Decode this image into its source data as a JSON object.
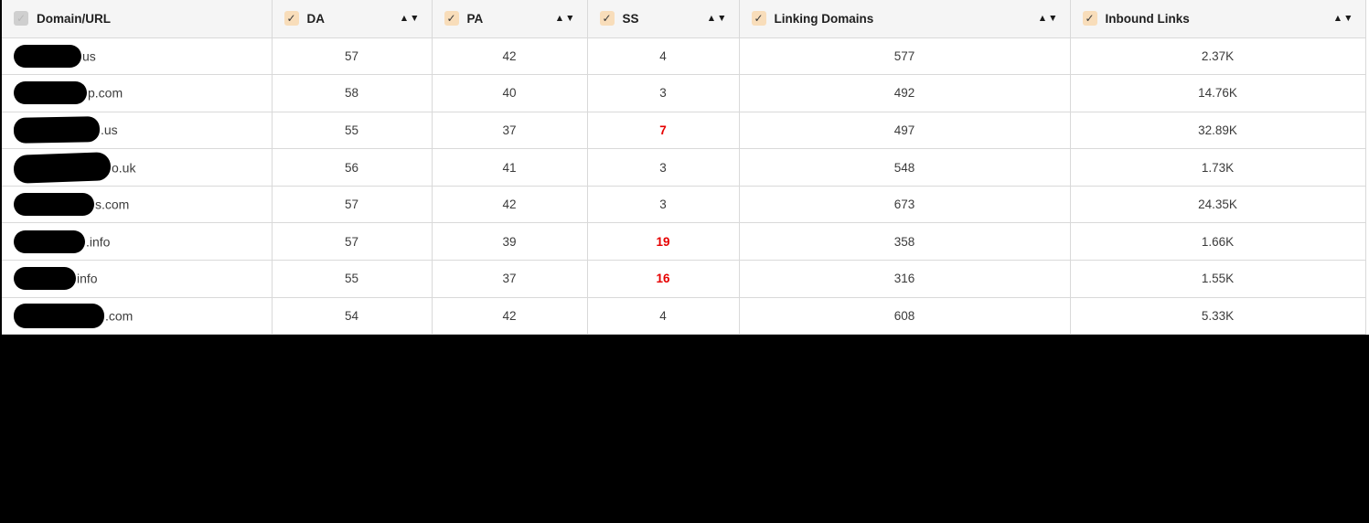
{
  "icons": {
    "check": "✓",
    "sort": "▲▼"
  },
  "colors": {
    "flag_red": "#e60000",
    "header_bg": "#f5f5f5",
    "border": "#d9d9d9",
    "checkbox_checked_bg": "#f8ddba",
    "checkbox_disabled_bg": "#cfcfcf",
    "text_dark": "#1f1f1f",
    "text_cell": "#3b3b3b",
    "redaction_black": "#000000"
  },
  "table": {
    "columns": [
      {
        "id": "domain",
        "label": "Domain/URL",
        "checkbox": "disabled-checked",
        "sortable": false
      },
      {
        "id": "da",
        "label": "DA",
        "checkbox": "checked",
        "sortable": true
      },
      {
        "id": "pa",
        "label": "PA",
        "checkbox": "checked",
        "sortable": true
      },
      {
        "id": "ss",
        "label": "SS",
        "checkbox": "checked",
        "sortable": true
      },
      {
        "id": "linking_domains",
        "label": "Linking Domains",
        "checkbox": "checked",
        "sortable": true
      },
      {
        "id": "inbound_links",
        "label": "Inbound Links",
        "checkbox": "checked",
        "sortable": true
      }
    ],
    "rows": [
      {
        "domain_visible": "us",
        "redacted": true,
        "redaction_width": 74,
        "da": 57,
        "pa": 42,
        "ss": 4,
        "ss_flagged": false,
        "linking_domains": 577,
        "inbound_links": "2.37K"
      },
      {
        "domain_visible": "p.com",
        "redacted": true,
        "redaction_width": 80,
        "da": 58,
        "pa": 40,
        "ss": 3,
        "ss_flagged": false,
        "linking_domains": 492,
        "inbound_links": "14.76K"
      },
      {
        "domain_visible": ".us",
        "redacted": true,
        "redaction_width": 94,
        "da": 55,
        "pa": 37,
        "ss": 7,
        "ss_flagged": true,
        "linking_domains": 497,
        "inbound_links": "32.89K"
      },
      {
        "domain_visible": "o.uk",
        "redacted": true,
        "redaction_width": 106,
        "da": 56,
        "pa": 41,
        "ss": 3,
        "ss_flagged": false,
        "linking_domains": 548,
        "inbound_links": "1.73K"
      },
      {
        "domain_visible": "s.com",
        "redacted": true,
        "redaction_width": 88,
        "da": 57,
        "pa": 42,
        "ss": 3,
        "ss_flagged": false,
        "linking_domains": 673,
        "inbound_links": "24.35K"
      },
      {
        "domain_visible": ".info",
        "redacted": true,
        "redaction_width": 78,
        "da": 57,
        "pa": 39,
        "ss": 19,
        "ss_flagged": true,
        "linking_domains": 358,
        "inbound_links": "1.66K"
      },
      {
        "domain_visible": "info",
        "redacted": true,
        "redaction_width": 68,
        "da": 55,
        "pa": 37,
        "ss": 16,
        "ss_flagged": true,
        "linking_domains": 316,
        "inbound_links": "1.55K"
      },
      {
        "domain_visible": ".com",
        "redacted": true,
        "redaction_width": 99,
        "da": 54,
        "pa": 42,
        "ss": 4,
        "ss_flagged": false,
        "linking_domains": 608,
        "inbound_links": "5.33K"
      }
    ]
  }
}
